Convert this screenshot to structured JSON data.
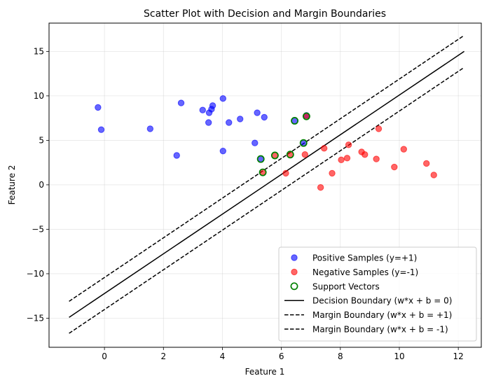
{
  "chart_data": {
    "type": "scatter",
    "title": "Scatter Plot with Decision and Margin Boundaries",
    "xlabel": "Feature 1",
    "ylabel": "Feature 2",
    "xlim": [
      -1.88,
      12.78
    ],
    "ylim": [
      -18.27,
      18.18
    ],
    "xticks": [
      0,
      2,
      4,
      6,
      8,
      10,
      12
    ],
    "yticks": [
      -15,
      -10,
      -5,
      0,
      5,
      10,
      15
    ],
    "grid": true,
    "legend_position": "lower-right",
    "series": [
      {
        "name": "Positive Samples (y=+1)",
        "kind": "points",
        "color": "#0000ff",
        "points": [
          [
            -0.22,
            8.7
          ],
          [
            -0.11,
            6.2
          ],
          [
            1.55,
            6.3
          ],
          [
            2.45,
            3.3
          ],
          [
            2.6,
            9.2
          ],
          [
            3.33,
            8.4
          ],
          [
            3.53,
            7.0
          ],
          [
            3.55,
            8.1
          ],
          [
            3.63,
            8.5
          ],
          [
            3.67,
            8.9
          ],
          [
            4.02,
            9.7
          ],
          [
            4.02,
            3.8
          ],
          [
            4.22,
            7.0
          ],
          [
            4.6,
            7.4
          ],
          [
            5.1,
            4.7
          ],
          [
            5.18,
            8.1
          ],
          [
            5.3,
            2.9
          ],
          [
            5.42,
            7.6
          ],
          [
            6.45,
            7.2
          ],
          [
            6.75,
            4.7
          ],
          [
            6.85,
            7.8
          ]
        ]
      },
      {
        "name": "Negative Samples (y=-1)",
        "kind": "points",
        "color": "#ff0000",
        "points": [
          [
            5.37,
            1.4
          ],
          [
            5.78,
            3.3
          ],
          [
            6.15,
            1.3
          ],
          [
            6.3,
            3.4
          ],
          [
            6.8,
            3.4
          ],
          [
            6.85,
            7.7
          ],
          [
            7.33,
            -0.3
          ],
          [
            7.45,
            4.1
          ],
          [
            7.72,
            1.3
          ],
          [
            8.03,
            2.8
          ],
          [
            8.23,
            3.0
          ],
          [
            8.28,
            4.5
          ],
          [
            8.72,
            3.7
          ],
          [
            8.83,
            3.4
          ],
          [
            9.22,
            2.9
          ],
          [
            9.3,
            6.3
          ],
          [
            9.83,
            2.0
          ],
          [
            10.15,
            4.0
          ],
          [
            10.92,
            2.4
          ],
          [
            11.17,
            1.1
          ]
        ]
      },
      {
        "name": "Support Vectors",
        "kind": "hollow",
        "color": "#008000",
        "points": [
          [
            5.3,
            2.9
          ],
          [
            5.37,
            1.4
          ],
          [
            5.78,
            3.3
          ],
          [
            6.3,
            3.4
          ],
          [
            6.45,
            7.2
          ],
          [
            6.75,
            4.7
          ],
          [
            6.85,
            7.7
          ]
        ]
      },
      {
        "name": "Decision Boundary (w*x + b = 0)",
        "kind": "line",
        "style": "solid",
        "color": "#000000",
        "points": [
          [
            -1.2,
            -14.9
          ],
          [
            12.2,
            15.0
          ]
        ]
      },
      {
        "name": "Margin Boundary (w*x + b = +1)",
        "kind": "line",
        "style": "dashed",
        "color": "#000000",
        "points": [
          [
            -1.2,
            -13.1
          ],
          [
            12.2,
            16.8
          ]
        ]
      },
      {
        "name": "Margin Boundary (w*x + b = -1)",
        "kind": "line",
        "style": "dashed",
        "color": "#000000",
        "points": [
          [
            -1.2,
            -16.7
          ],
          [
            12.2,
            13.2
          ]
        ]
      }
    ]
  }
}
